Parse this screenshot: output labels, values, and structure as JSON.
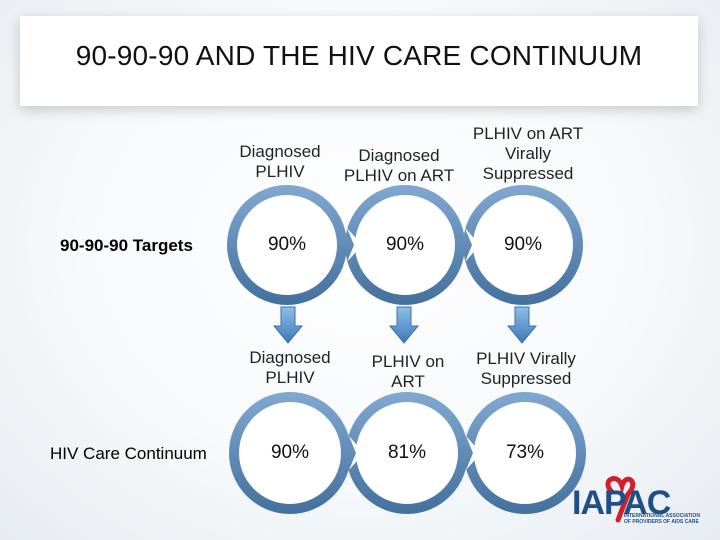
{
  "title": "90-90-90 AND THE HIV CARE CONTINUUM",
  "rows": [
    {
      "row_label": "90-90-90 Targets",
      "stages": [
        {
          "label": "Diagnosed\nPLHIV",
          "value": "90%"
        },
        {
          "label": "Diagnosed\nPLHIV on ART",
          "value": "90%"
        },
        {
          "label": "PLHIV on ART\nVirally\nSuppressed",
          "value": "90%"
        }
      ]
    },
    {
      "row_label": "HIV Care Continuum",
      "stages": [
        {
          "label": "Diagnosed\nPLHIV",
          "value": "90%"
        },
        {
          "label": "PLHIV on\nART",
          "value": "81%"
        },
        {
          "label": "PLHIV Virally\nSuppressed",
          "value": "73%"
        }
      ]
    }
  ],
  "logo": {
    "name": "IAPAC",
    "subtitle": "INTERNATIONAL ASSOCIATION OF PROVIDERS OF AIDS CARE"
  },
  "colors": {
    "ring": "#5b86b4",
    "arrow": "#4f88c6",
    "logo": "#1f4f86",
    "ribbon": "#d0202e"
  }
}
